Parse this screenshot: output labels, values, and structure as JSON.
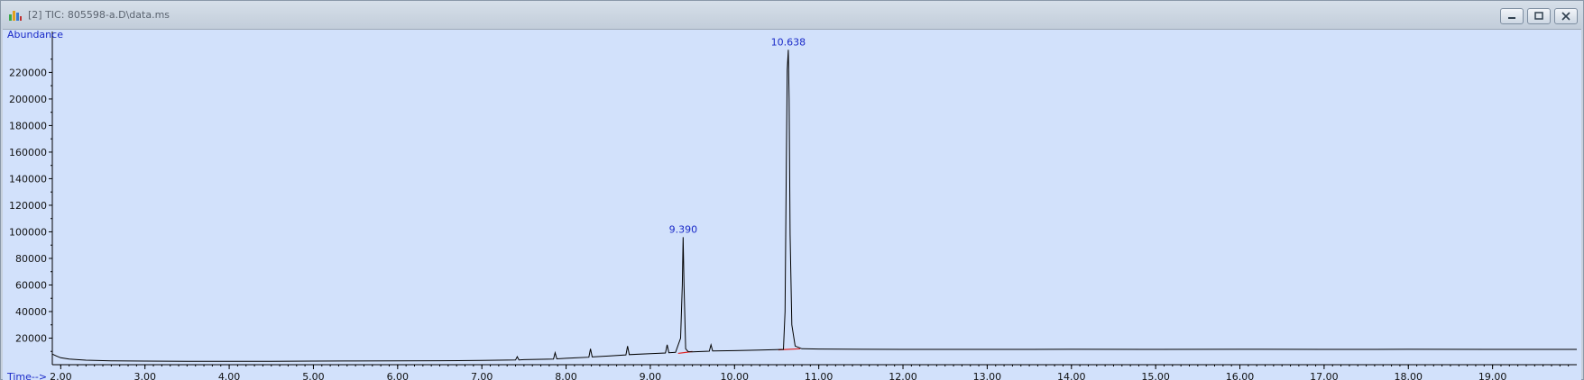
{
  "window": {
    "title": "[2] TIC: 805598-a.D\\data.ms",
    "icons": {
      "app": "chromatogram-icon",
      "minimize": "minimize-icon",
      "restore": "restore-icon",
      "close": "close-icon"
    }
  },
  "colors": {
    "plot_bg": "#d2e1fb",
    "trace": "#000000",
    "baseline": "#e02020",
    "label": "#1a2ac8"
  },
  "chart_data": {
    "type": "line",
    "title": "",
    "xlabel": "Time-->",
    "ylabel": "Abundance",
    "xlim": [
      1.9,
      20.0
    ],
    "ylim": [
      0,
      244000
    ],
    "x_ticks": [
      "2.00",
      "3.00",
      "4.00",
      "5.00",
      "6.00",
      "7.00",
      "8.00",
      "9.00",
      "10.00",
      "11.00",
      "12.00",
      "13.00",
      "14.00",
      "15.00",
      "16.00",
      "17.00",
      "18.00",
      "19.00"
    ],
    "y_ticks": [
      "20000",
      "40000",
      "60000",
      "80000",
      "100000",
      "120000",
      "140000",
      "160000",
      "180000",
      "200000",
      "220000"
    ],
    "series": [
      {
        "x": [
          1.9,
          1.95,
          2.0,
          2.1,
          2.3,
          2.6,
          3.0,
          3.5,
          4.0,
          4.5,
          5.0,
          5.5,
          6.0,
          6.5,
          7.0,
          7.4,
          7.42,
          7.44,
          7.5,
          7.85,
          7.87,
          7.89,
          8.0,
          8.27,
          8.29,
          8.31,
          8.5,
          8.71,
          8.73,
          8.75,
          9.0,
          9.18,
          9.2,
          9.22,
          9.3,
          9.36,
          9.38,
          9.39,
          9.4,
          9.42,
          9.45,
          9.5,
          9.7,
          9.72,
          9.74,
          10.0,
          10.3,
          10.5,
          10.58,
          10.6,
          10.615,
          10.625,
          10.638,
          10.648,
          10.66,
          10.68,
          10.72,
          10.8,
          11.0,
          11.5,
          12.0,
          13.0,
          14.0,
          15.0,
          16.0,
          17.0,
          18.0,
          19.0,
          20.0
        ],
        "y": [
          8000,
          6500,
          5200,
          4200,
          3400,
          2900,
          2700,
          2600,
          2600,
          2600,
          2700,
          2800,
          2900,
          3000,
          3200,
          3500,
          6000,
          3600,
          3800,
          4200,
          9000,
          4400,
          4800,
          5600,
          12000,
          5800,
          6500,
          7400,
          14000,
          7600,
          8300,
          8800,
          15000,
          9000,
          9300,
          20000,
          60000,
          96000,
          60000,
          12000,
          9800,
          9700,
          10200,
          15000,
          10300,
          10600,
          11000,
          11300,
          11500,
          40000,
          150000,
          222000,
          237000,
          200000,
          98000,
          30000,
          14000,
          12000,
          11800,
          11600,
          11500,
          11500,
          11600,
          11500,
          11600,
          11500,
          11600,
          11500,
          11500
        ]
      }
    ],
    "annotations": [
      {
        "text": "9.390",
        "x": 9.39,
        "y": 96000
      },
      {
        "text": "10.638",
        "x": 10.638,
        "y": 237000
      }
    ],
    "baselines": [
      {
        "x": [
          9.33,
          9.5
        ],
        "y": [
          8500,
          9900
        ]
      },
      {
        "x": [
          10.52,
          10.78
        ],
        "y": [
          11200,
          12000
        ]
      }
    ]
  }
}
